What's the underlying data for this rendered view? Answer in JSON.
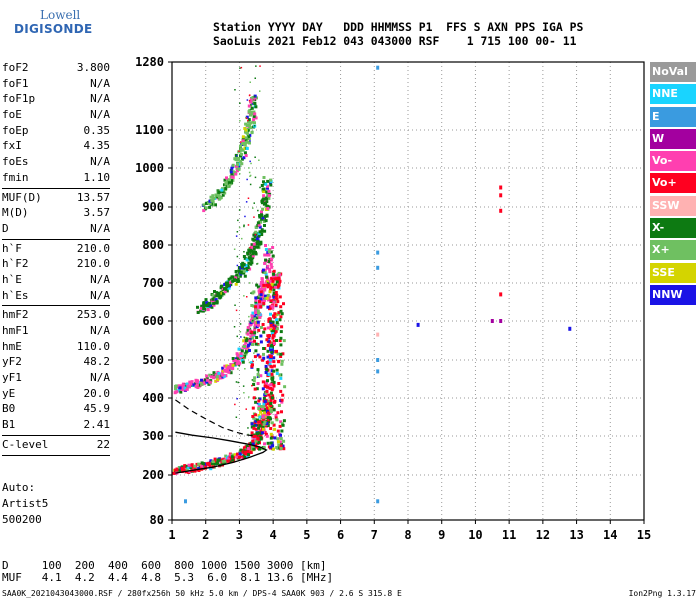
{
  "logo": {
    "line1": "Lowell",
    "line2": "DIGISONDE"
  },
  "header": {
    "line1": "Station YYYY DAY   DDD HHMMSS P1  FFS S AXN PPS IGA PS",
    "line2": "SaoLuis 2021 Feb12 043 043000 RSF    1 715 100 00- 11"
  },
  "params": [
    {
      "name": "foF2",
      "value": "3.800"
    },
    {
      "name": "foF1",
      "value": "N/A"
    },
    {
      "name": "foF1p",
      "value": "N/A"
    },
    {
      "name": "foE",
      "value": "N/A"
    },
    {
      "name": "foEp",
      "value": "0.35"
    },
    {
      "name": "fxI",
      "value": "4.35"
    },
    {
      "name": "foEs",
      "value": "N/A"
    },
    {
      "name": "fmin",
      "value": "1.10"
    },
    {
      "sep": true
    },
    {
      "name": "MUF(D)",
      "value": "13.57"
    },
    {
      "name": "M(D)",
      "value": "3.57"
    },
    {
      "name": "D",
      "value": "N/A"
    },
    {
      "sep": true
    },
    {
      "name": "h`F",
      "value": "210.0"
    },
    {
      "name": "h`F2",
      "value": "210.0"
    },
    {
      "name": "h`E",
      "value": "N/A"
    },
    {
      "name": "h`Es",
      "value": "N/A"
    },
    {
      "sep": true
    },
    {
      "name": "hmF2",
      "value": "253.0"
    },
    {
      "name": "hmF1",
      "value": "N/A"
    },
    {
      "name": "hmE",
      "value": "110.0"
    },
    {
      "name": "yF2",
      "value": "48.2"
    },
    {
      "name": "yF1",
      "value": "N/A"
    },
    {
      "name": "yE",
      "value": "20.0"
    },
    {
      "name": "B0",
      "value": "45.9"
    },
    {
      "name": "B1",
      "value": "2.41"
    },
    {
      "sep": true
    },
    {
      "name": "C-level",
      "value": "22"
    },
    {
      "sep": true
    }
  ],
  "autoscale": {
    "line1": "Auto:",
    "line2": "Artist5",
    "line3": "500200"
  },
  "muf_table": {
    "line1": "D     100  200  400  600  800 1000 1500 3000 [km]",
    "line2": "MUF   4.1  4.2  4.4  4.8  5.3  6.0  8.1 13.6 [MHz]"
  },
  "footer": "SAA0K_2021043043000.RSF / 280fx256h 50 kHz 5.0 km / DPS-4 SAA0K 903 / 2.6 S 315.8 E",
  "version": "Ion2Png 1.3.17",
  "legend": [
    {
      "label": "NoVal",
      "color": "#9a9a9a"
    },
    {
      "label": "NNE",
      "color": "#19d4ff"
    },
    {
      "label": "E",
      "color": "#3a9be0"
    },
    {
      "label": "W",
      "color": "#a3009f"
    },
    {
      "label": "Vo-",
      "color": "#ff3fb0"
    },
    {
      "label": "Vo+",
      "color": "#ff0020"
    },
    {
      "label": "SSW",
      "color": "#ffb2b2"
    },
    {
      "label": "X-",
      "color": "#0d7a12"
    },
    {
      "label": "X+",
      "color": "#6fc061"
    },
    {
      "label": "SSE",
      "color": "#d4d400"
    },
    {
      "label": "NNW",
      "color": "#1a13e6"
    }
  ],
  "chart_data": {
    "type": "scatter",
    "title": "",
    "xlabel": "",
    "ylabel": "",
    "xlim": [
      1,
      15
    ],
    "ylim": [
      80,
      1280
    ],
    "x_ticks": [
      "1",
      "2",
      "3",
      "4",
      "5",
      "6",
      "7",
      "8",
      "9",
      "10",
      "11",
      "12",
      "13",
      "14",
      "15"
    ],
    "y_ticks": [
      "80",
      "200",
      "300",
      "400",
      "500",
      "600",
      "700",
      "800",
      "900",
      "1000",
      "1100",
      "1280"
    ],
    "grid": true,
    "traces": [
      {
        "name": "first-order F trace",
        "color": "#ff0020",
        "points": [
          [
            1.1,
            215
          ],
          [
            1.5,
            220
          ],
          [
            2.0,
            228
          ],
          [
            2.5,
            240
          ],
          [
            3.0,
            255
          ],
          [
            3.3,
            272
          ],
          [
            3.5,
            300
          ],
          [
            3.7,
            340
          ],
          [
            3.8,
            380
          ],
          [
            3.85,
            440
          ],
          [
            3.9,
            520
          ],
          [
            3.95,
            600
          ],
          [
            4.0,
            700
          ],
          [
            4.1,
            730
          ]
        ]
      },
      {
        "name": "second-order F trace",
        "color": "#ff3fb0",
        "points": [
          [
            1.1,
            425
          ],
          [
            1.5,
            435
          ],
          [
            2.0,
            450
          ],
          [
            2.5,
            470
          ],
          [
            2.9,
            500
          ],
          [
            3.2,
            545
          ],
          [
            3.4,
            600
          ],
          [
            3.6,
            660
          ],
          [
            3.75,
            720
          ],
          [
            3.85,
            800
          ]
        ]
      },
      {
        "name": "third-order F trace",
        "color": "#0d7a12",
        "points": [
          [
            1.8,
            630
          ],
          [
            2.2,
            660
          ],
          [
            2.6,
            695
          ],
          [
            3.0,
            730
          ],
          [
            3.3,
            775
          ],
          [
            3.5,
            820
          ],
          [
            3.7,
            900
          ],
          [
            3.8,
            980
          ]
        ]
      },
      {
        "name": "fourth-order F trace",
        "color": "#6fc061",
        "points": [
          [
            2.0,
            900
          ],
          [
            2.4,
            940
          ],
          [
            2.8,
            990
          ],
          [
            3.1,
            1060
          ],
          [
            3.3,
            1120
          ],
          [
            3.4,
            1200
          ]
        ]
      }
    ],
    "profile_curve": [
      [
        1.1,
        205
      ],
      [
        1.6,
        212
      ],
      [
        2.2,
        220
      ],
      [
        2.8,
        232
      ],
      [
        3.3,
        245
      ],
      [
        3.7,
        258
      ],
      [
        3.8,
        264
      ],
      [
        3.6,
        272
      ],
      [
        3.2,
        280
      ],
      [
        2.7,
        288
      ],
      [
        2.2,
        295
      ],
      [
        1.6,
        302
      ],
      [
        1.1,
        310
      ]
    ],
    "dashed_curve": [
      [
        1.1,
        395
      ],
      [
        1.5,
        370
      ],
      [
        2.0,
        345
      ],
      [
        2.5,
        322
      ],
      [
        2.9,
        310
      ],
      [
        3.2,
        303
      ],
      [
        3.5,
        300
      ]
    ],
    "isolated_points": [
      {
        "x": 7.1,
        "y": 1265,
        "color": "#3a9be0"
      },
      {
        "x": 7.1,
        "y": 780,
        "color": "#3a9be0"
      },
      {
        "x": 7.1,
        "y": 740,
        "color": "#3a9be0"
      },
      {
        "x": 7.1,
        "y": 500,
        "color": "#3a9be0"
      },
      {
        "x": 7.1,
        "y": 470,
        "color": "#3a9be0"
      },
      {
        "x": 7.1,
        "y": 130,
        "color": "#3a9be0"
      },
      {
        "x": 7.1,
        "y": 565,
        "color": "#ffb2b2"
      },
      {
        "x": 8.3,
        "y": 590,
        "color": "#1a13e6"
      },
      {
        "x": 10.5,
        "y": 600,
        "color": "#a3009f"
      },
      {
        "x": 10.75,
        "y": 600,
        "color": "#a3009f"
      },
      {
        "x": 10.75,
        "y": 950,
        "color": "#ff0020"
      },
      {
        "x": 10.75,
        "y": 930,
        "color": "#ff0020"
      },
      {
        "x": 10.75,
        "y": 890,
        "color": "#ff0020"
      },
      {
        "x": 10.75,
        "y": 670,
        "color": "#ff0020"
      },
      {
        "x": 12.8,
        "y": 580,
        "color": "#1a13e6"
      },
      {
        "x": 1.4,
        "y": 130,
        "color": "#3a9be0"
      }
    ]
  }
}
